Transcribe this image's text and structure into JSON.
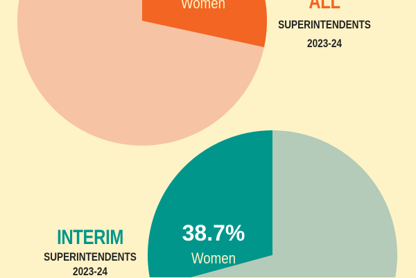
{
  "chart_data": [
    {
      "type": "pie",
      "title": "ALL",
      "subtitle": "SUPERINTENDENTS",
      "period": "2023-24",
      "slices": [
        {
          "label": "Women",
          "value": 28.4,
          "color": "#f26522"
        },
        {
          "label": "",
          "value": 71.6,
          "color": "#f6c3a5"
        }
      ]
    },
    {
      "type": "pie",
      "title": "INTERIM",
      "subtitle": "SUPERINTENDENTS",
      "period": "2023-24",
      "slices": [
        {
          "label": "Women",
          "value": 38.7,
          "value_label": "38.7%",
          "color": "#00968c"
        },
        {
          "label": "",
          "value": 61.3,
          "color": "#b3cbb8"
        }
      ]
    }
  ],
  "colors": {
    "background": "#fef3c6",
    "all_title": "#f26522",
    "interim_title": "#00968c"
  }
}
